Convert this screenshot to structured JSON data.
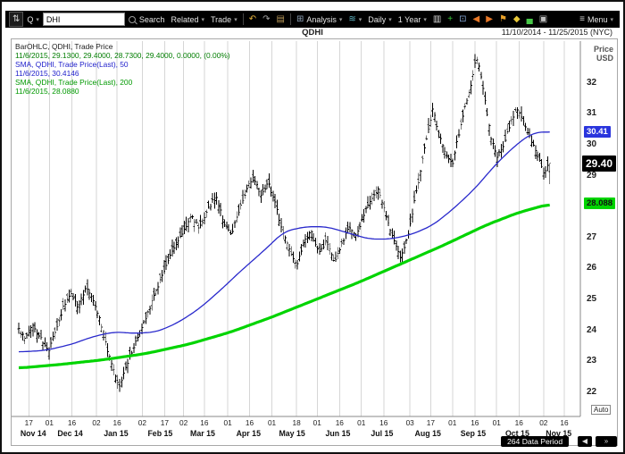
{
  "window": {
    "chart_code": "QDHI",
    "date_range": "11/10/2014 - 11/25/2015 (NYC)"
  },
  "toolbar": {
    "items": [
      {
        "type": "iconbox",
        "name": "updown-button",
        "icon": "arrows-updown-icon",
        "glyph": "⇅",
        "color": "#d0d0d0"
      },
      {
        "type": "dropdown",
        "name": "quote-source-select",
        "label": "Q"
      },
      {
        "type": "input",
        "name": "ticker-input",
        "value": "DHI"
      },
      {
        "type": "search",
        "name": "search-button",
        "label": "Search"
      },
      {
        "type": "dropdown",
        "name": "related-menu",
        "label": "Related"
      },
      {
        "type": "dropdown",
        "name": "trade-menu",
        "label": "Trade"
      },
      {
        "type": "sep"
      },
      {
        "type": "iconbtn",
        "name": "undo-button",
        "icon": "undo-icon",
        "glyph": "↶",
        "color": "#e8b43c"
      },
      {
        "type": "iconbtn",
        "name": "redo-button",
        "icon": "redo-icon",
        "glyph": "↷",
        "color": "#a8a8a8"
      },
      {
        "type": "iconbtn",
        "name": "notes-button",
        "icon": "note-icon",
        "glyph": "▤",
        "color": "#b89858"
      },
      {
        "type": "sep"
      },
      {
        "type": "dropdown",
        "name": "analysis-menu",
        "label": "Analysis",
        "icon": "analysis-icon",
        "glyph": "⊞",
        "iconColor": "#8fa3b8"
      },
      {
        "type": "dropdown",
        "name": "annotations-menu",
        "label": "",
        "icon": "waves-icon",
        "glyph": "≋",
        "iconColor": "#62b8c6"
      },
      {
        "type": "dropdown",
        "name": "periodicity-menu",
        "label": "Daily"
      },
      {
        "type": "dropdown",
        "name": "range-menu",
        "label": "1 Year"
      },
      {
        "type": "iconbtn",
        "name": "chart-type-button",
        "icon": "ohlc-chart-icon",
        "glyph": "▥",
        "color": "#d8d8d8"
      },
      {
        "type": "iconbtn",
        "name": "add-study-button",
        "icon": "add-grid-icon",
        "glyph": "+",
        "color": "#38c838"
      },
      {
        "type": "iconbtn",
        "name": "screen-layout-button",
        "icon": "monitor-icon",
        "glyph": "⊡",
        "color": "#86a8d8"
      },
      {
        "type": "iconbtn",
        "name": "skip-back-button",
        "icon": "skip-back-icon",
        "glyph": "◀",
        "color": "#e87828"
      },
      {
        "type": "iconbtn",
        "name": "skip-forward-button",
        "icon": "skip-forward-icon",
        "glyph": "▶",
        "color": "#e87828"
      },
      {
        "type": "iconbtn",
        "name": "event-flag-button",
        "icon": "flag-icon",
        "glyph": "⚑",
        "color": "#e8a028"
      },
      {
        "type": "iconbtn",
        "name": "time-marker-button",
        "icon": "marker-icon",
        "glyph": "◆",
        "color": "#e8c838"
      },
      {
        "type": "iconbtn",
        "name": "volume-button",
        "icon": "bars-icon",
        "glyph": "▄",
        "color": "#48c848"
      },
      {
        "type": "iconbtn",
        "name": "snapshot-button",
        "icon": "camera-icon",
        "glyph": "▣",
        "color": "#c0c0c0"
      },
      {
        "type": "spacer"
      },
      {
        "type": "dropdown",
        "name": "menu-button",
        "label": "Menu",
        "icon": "hamburger-icon",
        "glyph": "≡",
        "iconColor": "#d0d0d0"
      }
    ]
  },
  "legend": {
    "lines": [
      {
        "text": "BarOHLC, QDHI, Trade Price",
        "color": "#1a1a1a"
      },
      {
        "text": "11/6/2015, 29.1300, 29.4000, 28.7300, 29.4000, 0.0000, (0.00%)",
        "color": "#007d00"
      },
      {
        "text": "SMA, QDHI, Trade Price(Last), 50",
        "color": "#2222cc"
      },
      {
        "text": "11/6/2015, 30.4146",
        "color": "#2222cc"
      },
      {
        "text": "SMA, QDHI, Trade Price(Last), 200",
        "color": "#009900"
      },
      {
        "text": "11/6/2015, 28.0880",
        "color": "#009900"
      }
    ]
  },
  "axis": {
    "unit_line1": "Price",
    "unit_line2": "USD",
    "auto_label": "Auto",
    "y_ticks": [
      32,
      31,
      30,
      29,
      28,
      27,
      26,
      25,
      24,
      23,
      22
    ],
    "price_tags": [
      {
        "label": "30.41",
        "price": 30.4146,
        "bg": "#2a35dd",
        "fg": "#ffffff",
        "name": "sma50-price-tag",
        "big": false
      },
      {
        "label": "29.40",
        "price": 29.4,
        "bg": "#000000",
        "fg": "#ffffff",
        "name": "last-price-tag",
        "big": true
      },
      {
        "label": "28.088",
        "price": 28.088,
        "bg": "#00d400",
        "fg": "#111111",
        "name": "sma200-price-tag",
        "big": false
      }
    ],
    "x_ticks": [
      {
        "label": "17",
        "f": 0.018
      },
      {
        "label": "01",
        "f": 0.055
      },
      {
        "label": "16",
        "f": 0.095
      },
      {
        "label": "02",
        "f": 0.139
      },
      {
        "label": "16",
        "f": 0.176
      },
      {
        "label": "02",
        "f": 0.221
      },
      {
        "label": "17",
        "f": 0.261
      },
      {
        "label": "02",
        "f": 0.295
      },
      {
        "label": "16",
        "f": 0.332
      },
      {
        "label": "01",
        "f": 0.374
      },
      {
        "label": "16",
        "f": 0.413
      },
      {
        "label": "01",
        "f": 0.453
      },
      {
        "label": "18",
        "f": 0.497
      },
      {
        "label": "01",
        "f": 0.534
      },
      {
        "label": "16",
        "f": 0.574
      },
      {
        "label": "01",
        "f": 0.613
      },
      {
        "label": "16",
        "f": 0.653
      },
      {
        "label": "03",
        "f": 0.7
      },
      {
        "label": "17",
        "f": 0.737
      },
      {
        "label": "01",
        "f": 0.776
      },
      {
        "label": "16",
        "f": 0.816
      },
      {
        "label": "01",
        "f": 0.855
      },
      {
        "label": "16",
        "f": 0.895
      },
      {
        "label": "02",
        "f": 0.939
      },
      {
        "label": "16",
        "f": 0.976
      }
    ],
    "months": [
      {
        "label": "Nov 14",
        "f": 0.026
      },
      {
        "label": "Dec 14",
        "f": 0.092
      },
      {
        "label": "Jan 15",
        "f": 0.174
      },
      {
        "label": "Feb 15",
        "f": 0.253
      },
      {
        "label": "Mar 15",
        "f": 0.329
      },
      {
        "label": "Apr 15",
        "f": 0.411
      },
      {
        "label": "May 15",
        "f": 0.489
      },
      {
        "label": "Jun 15",
        "f": 0.571
      },
      {
        "label": "Jul 15",
        "f": 0.65
      },
      {
        "label": "Aug 15",
        "f": 0.732
      },
      {
        "label": "Sep 15",
        "f": 0.813
      },
      {
        "label": "Oct 15",
        "f": 0.892
      },
      {
        "label": "Nov 15",
        "f": 0.966
      }
    ]
  },
  "footer": {
    "data_period": "264 Data Period",
    "nav_left": "◀",
    "nav_right": "»"
  },
  "colors": {
    "grid": "#d6d6d6",
    "bars": "#000000",
    "sma50": "#2929cc",
    "sma200": "#00d400",
    "axis_line": "#888888"
  },
  "chart_data": {
    "type": "ohlc-with-sma",
    "symbol": "DHI",
    "chart_code": "QDHI",
    "period": "Daily",
    "range": "1 Year",
    "x_range": [
      "11/10/2014",
      "11/25/2015"
    ],
    "bars_count": 264,
    "data_extent": 0.95,
    "ylim": [
      21.1,
      33.35
    ],
    "last": {
      "date": "11/6/2015",
      "open": 29.13,
      "high": 29.4,
      "low": 28.73,
      "close": 29.4,
      "change": 0.0,
      "change_pct": "0.00%"
    },
    "sma50_last": 30.4146,
    "sma200_last": 28.088,
    "close_path": [
      [
        0,
        24.05
      ],
      [
        0.012,
        23.7
      ],
      [
        0.025,
        24.2
      ],
      [
        0.04,
        23.8
      ],
      [
        0.055,
        23.3
      ],
      [
        0.07,
        24.0
      ],
      [
        0.085,
        24.8
      ],
      [
        0.1,
        25.2
      ],
      [
        0.112,
        24.7
      ],
      [
        0.127,
        25.45
      ],
      [
        0.14,
        25.0
      ],
      [
        0.152,
        24.4
      ],
      [
        0.165,
        23.5
      ],
      [
        0.178,
        22.7
      ],
      [
        0.19,
        22.15
      ],
      [
        0.202,
        22.85
      ],
      [
        0.215,
        23.4
      ],
      [
        0.23,
        24.0
      ],
      [
        0.25,
        24.9
      ],
      [
        0.27,
        25.8
      ],
      [
        0.29,
        26.6
      ],
      [
        0.31,
        27.2
      ],
      [
        0.325,
        27.7
      ],
      [
        0.34,
        27.3
      ],
      [
        0.357,
        27.95
      ],
      [
        0.372,
        28.35
      ],
      [
        0.386,
        27.5
      ],
      [
        0.4,
        27.05
      ],
      [
        0.415,
        27.9
      ],
      [
        0.43,
        28.6
      ],
      [
        0.443,
        28.95
      ],
      [
        0.456,
        28.4
      ],
      [
        0.47,
        28.8
      ],
      [
        0.483,
        28.1
      ],
      [
        0.495,
        27.3
      ],
      [
        0.51,
        26.6
      ],
      [
        0.523,
        26.05
      ],
      [
        0.537,
        26.8
      ],
      [
        0.55,
        27.2
      ],
      [
        0.565,
        26.5
      ],
      [
        0.58,
        26.9
      ],
      [
        0.594,
        26.15
      ],
      [
        0.608,
        26.75
      ],
      [
        0.622,
        27.35
      ],
      [
        0.636,
        27.05
      ],
      [
        0.65,
        27.75
      ],
      [
        0.665,
        28.3
      ],
      [
        0.678,
        28.55
      ],
      [
        0.69,
        27.8
      ],
      [
        0.705,
        27.0
      ],
      [
        0.72,
        26.35
      ],
      [
        0.733,
        27.1
      ],
      [
        0.746,
        28.2
      ],
      [
        0.758,
        29.3
      ],
      [
        0.77,
        30.4
      ],
      [
        0.78,
        31.15
      ],
      [
        0.792,
        30.3
      ],
      [
        0.805,
        29.7
      ],
      [
        0.817,
        29.35
      ],
      [
        0.828,
        30.3
      ],
      [
        0.84,
        31.2
      ],
      [
        0.852,
        31.9
      ],
      [
        0.861,
        32.85
      ],
      [
        0.87,
        32.3
      ],
      [
        0.88,
        31.2
      ],
      [
        0.89,
        30.2
      ],
      [
        0.9,
        29.6
      ],
      [
        0.912,
        29.9
      ],
      [
        0.924,
        30.6
      ],
      [
        0.936,
        31.15
      ],
      [
        0.948,
        30.9
      ],
      [
        0.958,
        30.4
      ],
      [
        0.968,
        30.05
      ],
      [
        0.978,
        29.6
      ],
      [
        0.988,
        29.1
      ],
      [
        1,
        29.4
      ]
    ],
    "sma50_path": [
      [
        0,
        23.3
      ],
      [
        0.05,
        23.35
      ],
      [
        0.1,
        23.55
      ],
      [
        0.14,
        23.8
      ],
      [
        0.18,
        23.95
      ],
      [
        0.22,
        23.9
      ],
      [
        0.26,
        23.95
      ],
      [
        0.3,
        24.25
      ],
      [
        0.34,
        24.7
      ],
      [
        0.38,
        25.3
      ],
      [
        0.42,
        25.95
      ],
      [
        0.46,
        26.55
      ],
      [
        0.5,
        27.2
      ],
      [
        0.54,
        27.35
      ],
      [
        0.58,
        27.35
      ],
      [
        0.62,
        27.15
      ],
      [
        0.66,
        26.95
      ],
      [
        0.7,
        26.95
      ],
      [
        0.74,
        27.1
      ],
      [
        0.78,
        27.4
      ],
      [
        0.82,
        27.95
      ],
      [
        0.86,
        28.6
      ],
      [
        0.9,
        29.4
      ],
      [
        0.94,
        30.05
      ],
      [
        0.97,
        30.4
      ],
      [
        1,
        30.4146
      ]
    ],
    "sma200_path": [
      [
        0,
        22.78
      ],
      [
        0.08,
        22.9
      ],
      [
        0.16,
        23.05
      ],
      [
        0.24,
        23.25
      ],
      [
        0.32,
        23.55
      ],
      [
        0.4,
        23.95
      ],
      [
        0.48,
        24.45
      ],
      [
        0.56,
        25.0
      ],
      [
        0.64,
        25.55
      ],
      [
        0.72,
        26.15
      ],
      [
        0.8,
        26.75
      ],
      [
        0.88,
        27.4
      ],
      [
        0.94,
        27.8
      ],
      [
        1,
        28.088
      ]
    ]
  }
}
